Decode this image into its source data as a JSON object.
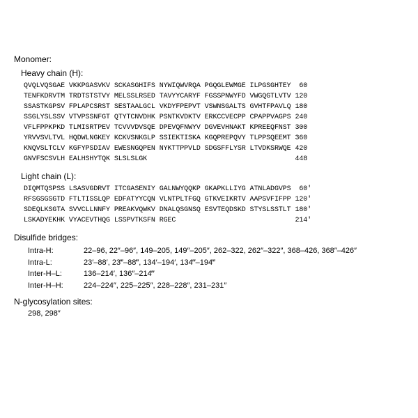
{
  "monomer": {
    "title": "Monomer:",
    "heavy": {
      "title": "Heavy chain (H):",
      "lines": [
        "QVQLVQSGAE VKKPGASVKV SCKASGHIFS NYWIQWVRQA PGQGLEWMGE ILPGSGHTEY  60",
        "TENFKDRVTM TRDTSTSTVY MELSSLRSED TAVYYCARYF FGSSPNWYFD VWGQGTLVTV 120",
        "SSASTKGPSV FPLAPCSRST SESTAALGCL VKDYFPEPVT VSWNSGALTS GVHTFPAVLQ 180",
        "SSGLYSLSSV VTVPSSNFGT QTYTCNVDHK PSNTKVDKTV ERKCCVECPP CPAPPVAGPS 240",
        "VFLFPPKPKD TLMISRTPEV TCVVVDVSQE DPEVQFNWYV DGVEVHNAKT KPREEQFNST 300",
        "YRVVSVLTVL HQDWLNGKEY KCKVSNKGLP SSIEKTISKA KGQPREPQVY TLPPSQEEMT 360",
        "KNQVSLTCLV KGFYPSDIAV EWESNGQPEN NYKTTPPVLD SDGSFFLYSR LTVDKSRWQE 420",
        "GNVFSCSVLH EALHSHYTQK SLSLSLGK                                    448"
      ]
    },
    "light": {
      "title": "Light chain (L):",
      "lines": [
        "DIQMTQSPSS LSASVGDRVT ITCGASENIY GALNWYQQKP GKAPKLLIYG ATNLADGVPS  60'",
        "RFSGSGSGTD FTLTISSLQP EDFATYYCQN VLNTPLTFGQ GTKVEIKRTV AAPSVFIFPP 120'",
        "SDEQLKSGTA SVVCLLNNFY PREAKVQWKV DNALQSGNSQ ESVTEQDSKD STYSLSSTLT 180'",
        "LSKADYEKHK VYACEVTHQG LSSPVTKSFN RGEC                             214'"
      ]
    }
  },
  "disulfide": {
    "title": "Disulfide bridges:",
    "rows": [
      {
        "label": "Intra-H:",
        "text": "22–96, 22″–96″, 149–205, 149″–205″, 262–322, 262″–322″, 368–426, 368″–426″"
      },
      {
        "label": "Intra-L:",
        "text": "23′–88′, 23‴–88‴, 134′–194′, 134‴–194‴"
      },
      {
        "label": "Inter-H–L:",
        "text": "136–214′, 136″–214‴"
      },
      {
        "label": "Inter-H–H:",
        "text": "224–224″, 225–225″, 228–228″, 231–231″"
      }
    ]
  },
  "nglyc": {
    "title": "N-glycosylation sites:",
    "text": "298, 298″"
  }
}
